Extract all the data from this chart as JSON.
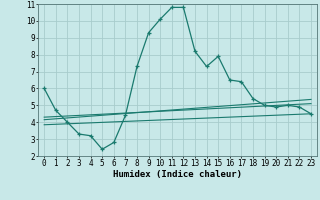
{
  "xlabel": "Humidex (Indice chaleur)",
  "xlim": [
    -0.5,
    23.5
  ],
  "ylim": [
    2,
    11
  ],
  "background_color": "#c8e8e8",
  "grid_color": "#a8cccc",
  "line_color": "#1a7a6e",
  "x_ticks": [
    0,
    1,
    2,
    3,
    4,
    5,
    6,
    7,
    8,
    9,
    10,
    11,
    12,
    13,
    14,
    15,
    16,
    17,
    18,
    19,
    20,
    21,
    22,
    23
  ],
  "y_ticks": [
    2,
    3,
    4,
    5,
    6,
    7,
    8,
    9,
    10,
    11
  ],
  "series_main_x": [
    0,
    1,
    2,
    3,
    4,
    5,
    6,
    7,
    8,
    9,
    10,
    11,
    12,
    13,
    14,
    15,
    16,
    17,
    18,
    19,
    20,
    21,
    22,
    23
  ],
  "series_main_y": [
    6.0,
    4.7,
    4.0,
    3.3,
    3.2,
    2.4,
    2.8,
    4.4,
    7.3,
    9.3,
    10.1,
    10.8,
    10.8,
    8.2,
    7.3,
    7.9,
    6.5,
    6.4,
    5.4,
    5.0,
    4.9,
    5.0,
    4.9,
    4.5
  ],
  "line1_x": [
    0,
    23
  ],
  "line1_y": [
    4.15,
    5.35
  ],
  "line2_x": [
    0,
    23
  ],
  "line2_y": [
    4.3,
    5.1
  ],
  "line3_x": [
    0,
    23
  ],
  "line3_y": [
    3.85,
    4.5
  ]
}
